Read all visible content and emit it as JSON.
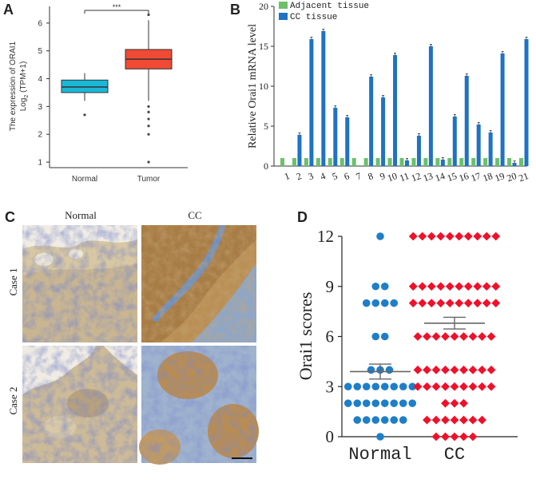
{
  "panels": {
    "a": "A",
    "b": "B",
    "c": "C",
    "d": "D"
  },
  "colors": {
    "normal_box": "#1ab8d8",
    "tumor_box": "#f04a34",
    "adjacent_bar": "#6cc06c",
    "cc_bar": "#1f72c4",
    "normal_dot": "#1f7ec8",
    "cc_diamond": "#f0102a"
  },
  "chart_data": [
    {
      "id": "A",
      "type": "box",
      "ylabel_line1": "The expression of ORAI1",
      "ylabel_line2": "Log2 (TPM+1)",
      "ylabel_log": "Log",
      "ylabel_sub": "2",
      "ylabel_rest": " (TPM+1)",
      "categories": [
        "Normal",
        "Tumor"
      ],
      "ylim": [
        0.8,
        6.6
      ],
      "yticks": [
        "1",
        "2",
        "3",
        "4",
        "5",
        "6"
      ],
      "boxes": [
        {
          "name": "Normal",
          "whisker_low": 3.2,
          "q1": 3.5,
          "median": 3.7,
          "q3": 3.95,
          "whisker_high": 4.2,
          "outliers": [
            2.7
          ]
        },
        {
          "name": "Tumor",
          "whisker_low": 3.2,
          "q1": 4.35,
          "median": 4.7,
          "q3": 5.05,
          "whisker_high": 6.1,
          "outliers": [
            3.0,
            2.8,
            2.55,
            2.3,
            2.0,
            1.0,
            6.3
          ]
        }
      ],
      "significance": "***"
    },
    {
      "id": "B",
      "type": "bar",
      "ylabel": "Relative Orai1 mRNA level",
      "ylim": [
        0,
        20
      ],
      "yticks": [
        "0",
        "5",
        "10",
        "15",
        "20"
      ],
      "categories": [
        "1",
        "2",
        "3",
        "4",
        "5",
        "6",
        "7",
        "8",
        "9",
        "10",
        "11",
        "12",
        "13",
        "14",
        "15",
        "16",
        "17",
        "18",
        "19",
        "20",
        "21"
      ],
      "series": [
        {
          "name": "Adjacent tissue",
          "values": [
            1,
            1,
            1,
            1,
            1,
            1,
            1,
            1,
            1,
            1,
            1,
            1,
            1,
            1,
            1,
            1,
            1,
            1,
            1,
            1,
            1
          ]
        },
        {
          "name": "CC tissue",
          "values": [
            0,
            3.9,
            15.9,
            16.9,
            7.3,
            6.1,
            0,
            11.2,
            8.6,
            13.9,
            0.7,
            3.8,
            15.0,
            0.8,
            6.2,
            11.3,
            5.2,
            4.2,
            14.1,
            0.4,
            15.9
          ]
        }
      ]
    },
    {
      "id": "D",
      "type": "scatter",
      "ylabel": "Orai1 scores",
      "categories": [
        "Normal",
        "CC"
      ],
      "ylim": [
        0,
        12
      ],
      "yticks": [
        "0",
        "3",
        "6",
        "9",
        "12"
      ],
      "groups": [
        {
          "name": "Normal",
          "mean": 3.9,
          "sem_low": 3.45,
          "sem_high": 4.35,
          "points": [
            [
              12,
              1
            ],
            [
              9,
              2
            ],
            [
              8,
              4
            ],
            [
              6,
              2
            ],
            [
              4,
              3
            ],
            [
              3,
              8
            ],
            [
              2,
              8
            ],
            [
              1,
              6
            ],
            [
              0,
              1
            ]
          ]
        },
        {
          "name": "CC",
          "mean": 6.8,
          "sem_low": 6.45,
          "sem_high": 7.15,
          "points": [
            [
              12,
              10
            ],
            [
              9,
              10
            ],
            [
              8,
              10
            ],
            [
              6,
              9
            ],
            [
              4,
              9
            ],
            [
              3,
              9
            ],
            [
              2,
              3
            ],
            [
              1,
              7
            ],
            [
              0,
              5
            ]
          ]
        }
      ]
    }
  ],
  "panel_c": {
    "col_normal": "Normal",
    "col_cc": "CC",
    "row_case1": "Case 1",
    "row_case2": "Case 2"
  }
}
